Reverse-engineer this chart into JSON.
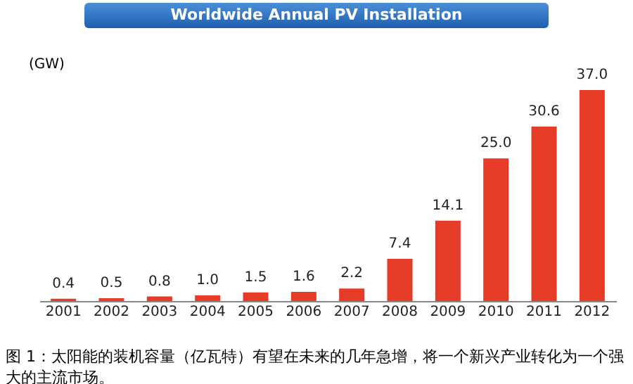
{
  "chart_data": {
    "type": "bar",
    "title": "Worldwide Annual PV Installation",
    "ylabel": "(GW)",
    "categories": [
      "2001",
      "2002",
      "2003",
      "2004",
      "2005",
      "2006",
      "2007",
      "2008",
      "2009",
      "2010",
      "2011",
      "2012"
    ],
    "values": [
      0.4,
      0.5,
      0.8,
      1.0,
      1.5,
      1.6,
      2.2,
      7.4,
      14.1,
      25.0,
      30.6,
      37.0
    ],
    "value_labels": [
      "0.4",
      "0.5",
      "0.8",
      "1.0",
      "1.5",
      "1.6",
      "2.2",
      "7.4",
      "14.1",
      "25.0",
      "30.6",
      "37.0"
    ],
    "color": "#e63b27",
    "tick_labels": "x",
    "grid": false,
    "annotations": [
      "图 1：太阳能的装机容量（亿瓦特）有望在未来的几年急增，将一个新兴产业转化为一个强大的主流市场。"
    ]
  }
}
